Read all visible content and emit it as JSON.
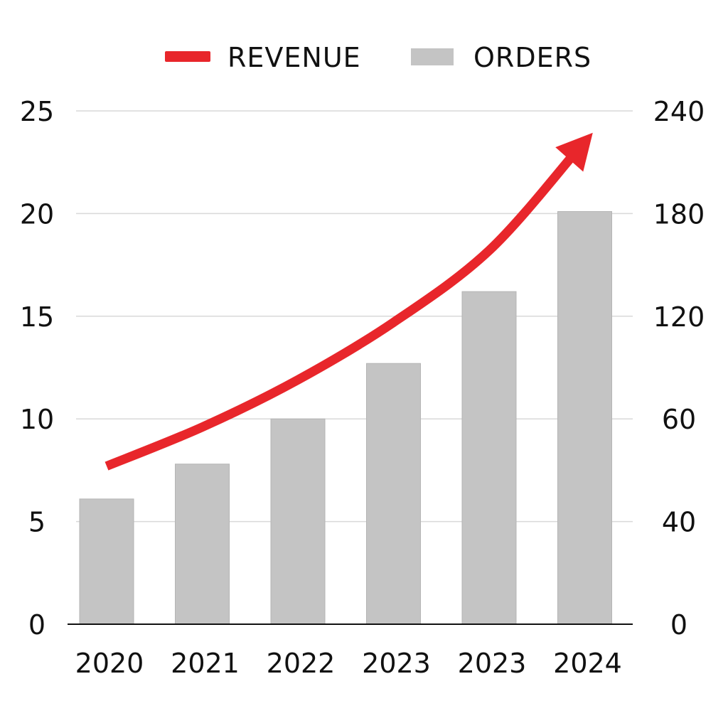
{
  "chart_data": {
    "type": "bar",
    "title": "",
    "xlabel": "",
    "ylabel_left": "",
    "ylabel_right": "",
    "categories": [
      "2020",
      "2021",
      "2022",
      "2023",
      "2023",
      "2024"
    ],
    "left_axis": {
      "ylim": [
        0,
        25
      ],
      "ticks": [
        {
          "value": 0,
          "label": "0"
        },
        {
          "value": 5,
          "label": "5"
        },
        {
          "value": 10,
          "label": "10"
        },
        {
          "value": 15,
          "label": "15"
        },
        {
          "value": 20,
          "label": "20"
        },
        {
          "value": 25,
          "label": "25"
        }
      ]
    },
    "right_axis": {
      "ticks": [
        {
          "value": 0,
          "label": "0"
        },
        {
          "value": 40,
          "label": "40"
        },
        {
          "value": 60,
          "label": "60"
        },
        {
          "value": 120,
          "label": "120"
        },
        {
          "value": 180,
          "label": "180"
        },
        {
          "value": 240,
          "label": "240"
        }
      ]
    },
    "series": [
      {
        "name": "REVENUE",
        "kind": "line-arrow",
        "axis": "left",
        "color": "#e8262b",
        "values": [
          7.7,
          9.6,
          11.9,
          14.7,
          18.2,
          23.0
        ]
      },
      {
        "name": "ORDERS",
        "kind": "bar",
        "axis": "left",
        "color": "#c4c4c4",
        "values": [
          6.1,
          7.8,
          10.0,
          12.7,
          16.2,
          20.1
        ]
      }
    ],
    "grid": true,
    "legend_position": "top-center"
  }
}
